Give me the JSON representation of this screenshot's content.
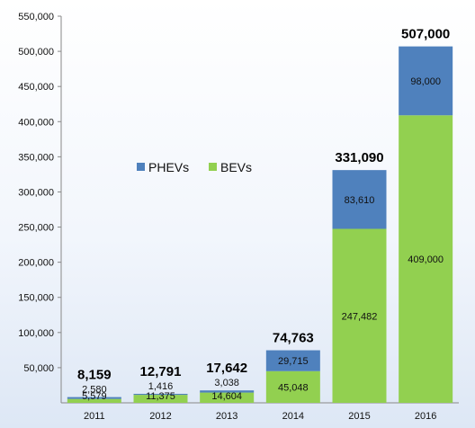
{
  "chart_data": {
    "type": "bar",
    "stacked": true,
    "categories": [
      "2011",
      "2012",
      "2013",
      "2014",
      "2015",
      "2016"
    ],
    "series": [
      {
        "name": "BEVs",
        "values": [
          5579,
          11375,
          14604,
          45048,
          247482,
          409000
        ],
        "color": "#92d050"
      },
      {
        "name": "PHEVs",
        "values": [
          2580,
          1416,
          3038,
          29715,
          83610,
          98000
        ],
        "color": "#4f81bd"
      }
    ],
    "segment_labels": {
      "BEVs": [
        "5,579",
        "11,375",
        "14,604",
        "45,048",
        "247,482",
        "409,000"
      ],
      "PHEVs": [
        "2,580",
        "1,416",
        "3,038",
        "29,715",
        "83,610",
        "98,000"
      ]
    },
    "totals": [
      8159,
      12791,
      17642,
      74763,
      331090,
      507000
    ],
    "total_labels": [
      "8,159",
      "12,791",
      "17,642",
      "74,763",
      "331,090",
      "507,000"
    ],
    "y_ticks": [
      "50,000",
      "100,000",
      "150,000",
      "200,000",
      "250,000",
      "300,000",
      "350,000",
      "400,000",
      "450,000",
      "500,000",
      "550,000"
    ],
    "ylim": [
      0,
      550000
    ],
    "grid": false,
    "legend_position": "center-left",
    "legend": [
      {
        "label": "PHEVs",
        "color": "#4f81bd"
      },
      {
        "label": "BEVs",
        "color": "#92d050"
      }
    ]
  }
}
